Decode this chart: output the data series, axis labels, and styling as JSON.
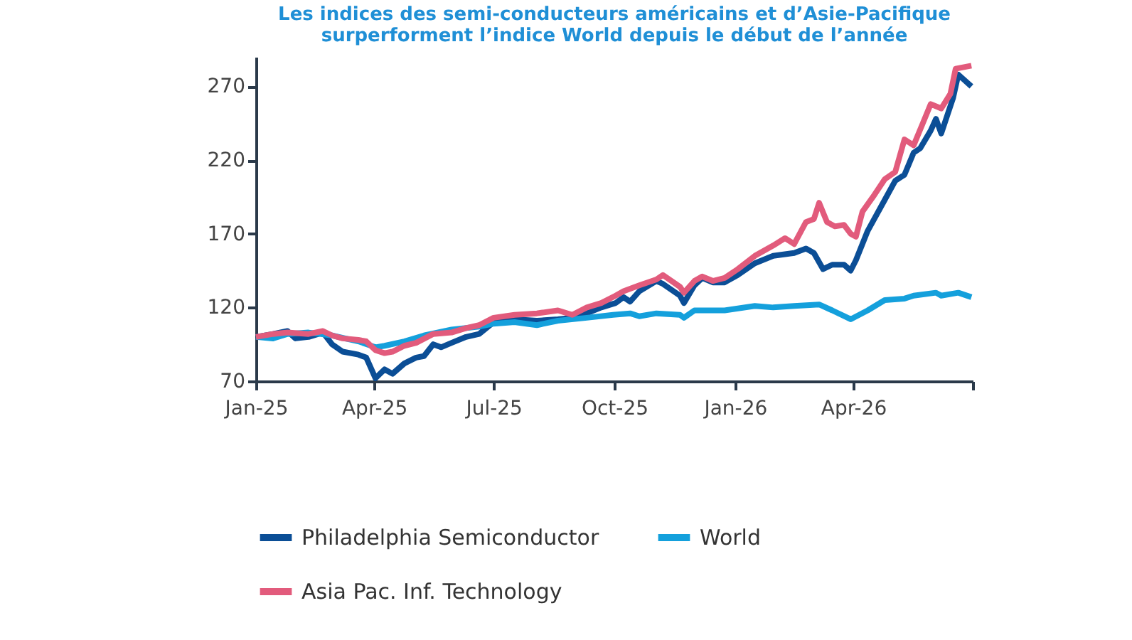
{
  "chart_data": {
    "type": "line",
    "title": "Les indices des semi-conducteurs américains et d’Asie-Pacifique\nsurperforment l’indice World depuis le début de l’année",
    "xlim": [
      "2025-01-01",
      "2026-07-01"
    ],
    "xticks": [
      {
        "value": "2025-01-01",
        "label": "Jan-25"
      },
      {
        "value": "2025-04-01",
        "label": "Apr-25"
      },
      {
        "value": "2025-07-01",
        "label": "Jul-25"
      },
      {
        "value": "2025-10-01",
        "label": "Oct-25"
      },
      {
        "value": "2026-01-01",
        "label": "Jan-26"
      },
      {
        "value": "2026-04-01",
        "label": "Apr-26"
      },
      {
        "value": "2026-07-01",
        "label": null
      }
    ],
    "ylim": [
      70,
      290
    ],
    "yticks": [
      70,
      120,
      170,
      220,
      270
    ],
    "grid": false,
    "legend": "bottom",
    "marker": "none",
    "line_style": "solid",
    "series": [
      {
        "name": "Philadelphia Semiconductor",
        "color": "#0b4e96",
        "x": [
          "2025-01-01",
          "2025-01-14",
          "2025-01-25",
          "2025-01-31",
          "2025-02-10",
          "2025-02-21",
          "2025-02-28",
          "2025-03-08",
          "2025-03-20",
          "2025-03-26",
          "2025-04-02",
          "2025-04-09",
          "2025-04-15",
          "2025-04-24",
          "2025-05-03",
          "2025-05-09",
          "2025-05-16",
          "2025-05-22",
          "2025-05-30",
          "2025-06-10",
          "2025-06-20",
          "2025-07-01",
          "2025-07-17",
          "2025-08-03",
          "2025-08-19",
          "2025-08-30",
          "2025-09-10",
          "2025-09-21",
          "2025-10-02",
          "2025-10-08",
          "2025-10-13",
          "2025-10-20",
          "2025-11-02",
          "2025-11-07",
          "2025-11-20",
          "2025-11-23",
          "2025-12-01",
          "2025-12-07",
          "2025-12-15",
          "2025-12-24",
          "2026-01-03",
          "2026-01-16",
          "2026-01-30",
          "2026-02-15",
          "2026-02-24",
          "2026-03-02",
          "2026-03-09",
          "2026-03-16",
          "2026-03-25",
          "2026-03-30",
          "2026-04-03",
          "2026-04-12",
          "2026-04-25",
          "2026-05-03",
          "2026-05-10",
          "2026-05-17",
          "2026-05-22",
          "2026-05-30",
          "2026-06-03",
          "2026-06-07",
          "2026-06-16",
          "2026-06-20",
          "2026-06-30"
        ],
        "values": [
          100,
          102,
          104,
          99,
          100,
          103,
          95,
          90,
          88,
          86,
          72,
          78,
          75,
          82,
          86,
          87,
          95,
          93,
          96,
          100,
          102,
          110,
          112,
          111,
          112,
          113,
          116,
          120,
          123,
          127,
          124,
          131,
          138,
          136,
          128,
          123,
          135,
          140,
          137,
          137,
          142,
          150,
          155,
          157,
          160,
          157,
          146,
          149,
          149,
          145,
          152,
          172,
          193,
          206,
          210,
          225,
          228,
          240,
          248,
          238,
          262,
          278,
          270
        ]
      },
      {
        "name": "World",
        "color": "#14a0dc",
        "x": [
          "2025-01-01",
          "2025-01-14",
          "2025-01-25",
          "2025-02-10",
          "2025-02-28",
          "2025-03-20",
          "2025-04-02",
          "2025-04-09",
          "2025-04-24",
          "2025-05-09",
          "2025-05-30",
          "2025-06-20",
          "2025-07-01",
          "2025-07-17",
          "2025-08-03",
          "2025-08-19",
          "2025-09-10",
          "2025-09-30",
          "2025-10-13",
          "2025-10-20",
          "2025-11-02",
          "2025-11-20",
          "2025-11-23",
          "2025-12-01",
          "2025-12-24",
          "2026-01-16",
          "2026-01-30",
          "2026-02-15",
          "2026-03-06",
          "2026-03-16",
          "2026-03-30",
          "2026-04-12",
          "2026-04-25",
          "2026-05-10",
          "2026-05-17",
          "2026-06-03",
          "2026-06-07",
          "2026-06-20",
          "2026-06-30"
        ],
        "values": [
          100,
          99,
          102,
          103,
          101,
          97,
          93,
          94,
          97,
          101,
          105,
          107,
          109,
          110,
          108,
          111,
          113,
          115,
          116,
          114,
          116,
          115,
          113,
          118,
          118,
          121,
          120,
          121,
          122,
          118,
          112,
          118,
          125,
          126,
          128,
          130,
          128,
          130,
          127
        ]
      },
      {
        "name": "Asia Pac. Inf. Technology",
        "color": "#e25b7c",
        "x": [
          "2025-01-01",
          "2025-01-14",
          "2025-01-25",
          "2025-02-10",
          "2025-02-21",
          "2025-02-28",
          "2025-03-08",
          "2025-03-20",
          "2025-03-26",
          "2025-04-02",
          "2025-04-09",
          "2025-04-15",
          "2025-04-24",
          "2025-05-03",
          "2025-05-16",
          "2025-05-30",
          "2025-06-10",
          "2025-06-20",
          "2025-07-01",
          "2025-07-17",
          "2025-08-03",
          "2025-08-19",
          "2025-08-30",
          "2025-09-10",
          "2025-09-21",
          "2025-10-02",
          "2025-10-08",
          "2025-10-20",
          "2025-11-02",
          "2025-11-07",
          "2025-11-20",
          "2025-11-23",
          "2025-12-01",
          "2025-12-07",
          "2025-12-15",
          "2025-12-24",
          "2026-01-03",
          "2026-01-16",
          "2026-01-30",
          "2026-02-08",
          "2026-02-15",
          "2026-02-24",
          "2026-03-02",
          "2026-03-06",
          "2026-03-12",
          "2026-03-18",
          "2026-03-25",
          "2026-03-30",
          "2026-04-03",
          "2026-04-08",
          "2026-04-16",
          "2026-04-25",
          "2026-05-03",
          "2026-05-10",
          "2026-05-17",
          "2026-05-24",
          "2026-05-30",
          "2026-06-07",
          "2026-06-14",
          "2026-06-18",
          "2026-06-30"
        ],
        "values": [
          100,
          102,
          103,
          102,
          104,
          101,
          99,
          98,
          97,
          91,
          89,
          90,
          94,
          96,
          102,
          103,
          106,
          108,
          113,
          115,
          116,
          118,
          115,
          120,
          123,
          128,
          131,
          135,
          139,
          142,
          134,
          130,
          138,
          141,
          138,
          140,
          146,
          155,
          162,
          167,
          163,
          178,
          180,
          191,
          178,
          175,
          176,
          170,
          168,
          185,
          195,
          207,
          212,
          234,
          230,
          245,
          258,
          255,
          265,
          282,
          284
        ]
      }
    ]
  }
}
